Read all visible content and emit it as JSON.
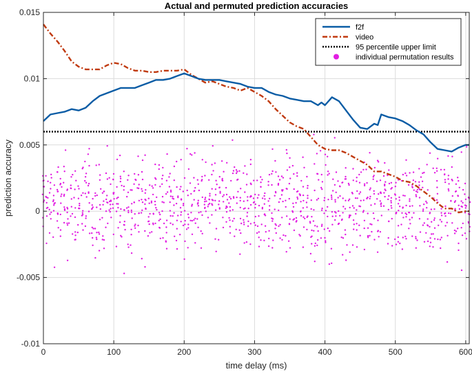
{
  "chart_data": {
    "type": "line",
    "title": "Actual and permuted prediction accuracies",
    "xlabel": "time delay (ms)",
    "ylabel": "prediction accuracy",
    "xlim": [
      0,
      605
    ],
    "ylim": [
      -0.01,
      0.015
    ],
    "xticks": [
      0,
      100,
      200,
      300,
      400,
      500,
      600
    ],
    "xtick_labels": [
      "0",
      "100",
      "200",
      "300",
      "400",
      "500",
      "600"
    ],
    "yticks": [
      -0.01,
      -0.005,
      0,
      0.005,
      0.01,
      0.015
    ],
    "ytick_labels": [
      "-0.01",
      "-0.005",
      "0",
      "0.005",
      "0.01",
      "0.015"
    ],
    "grid": true,
    "legend_position": "top-right",
    "colors": {
      "f2f": "#0a5ca5",
      "video": "#c0390e",
      "threshold": "#000000",
      "permutation": "#e21ee2",
      "grid": "#dcdcdc",
      "axes": "#262626"
    },
    "series": [
      {
        "name": "f2f",
        "style": "solid",
        "x": [
          0,
          10,
          20,
          30,
          40,
          50,
          60,
          70,
          80,
          90,
          100,
          110,
          120,
          130,
          140,
          150,
          160,
          170,
          180,
          190,
          200,
          210,
          220,
          230,
          240,
          250,
          260,
          270,
          280,
          290,
          300,
          310,
          320,
          330,
          340,
          350,
          360,
          370,
          380,
          390,
          395,
          400,
          410,
          420,
          430,
          440,
          450,
          460,
          470,
          475,
          480,
          490,
          500,
          510,
          520,
          530,
          540,
          550,
          560,
          570,
          580,
          590,
          600,
          605
        ],
        "y": [
          0.0068,
          0.0073,
          0.0074,
          0.0075,
          0.0077,
          0.0076,
          0.0078,
          0.0083,
          0.0087,
          0.0089,
          0.0091,
          0.0093,
          0.0093,
          0.0093,
          0.0095,
          0.0097,
          0.0099,
          0.0099,
          0.01,
          0.0102,
          0.0104,
          0.0102,
          0.01,
          0.0099,
          0.0099,
          0.0099,
          0.0098,
          0.0097,
          0.0096,
          0.0094,
          0.0093,
          0.0093,
          0.009,
          0.0088,
          0.0087,
          0.0085,
          0.0084,
          0.0083,
          0.0083,
          0.008,
          0.0082,
          0.008,
          0.0086,
          0.0083,
          0.0076,
          0.0069,
          0.0063,
          0.0062,
          0.0066,
          0.0065,
          0.0073,
          0.0071,
          0.007,
          0.0068,
          0.0065,
          0.0061,
          0.0058,
          0.0052,
          0.0047,
          0.0046,
          0.0045,
          0.0048,
          0.005,
          0.005
        ]
      },
      {
        "name": "video",
        "style": "dash-dot",
        "x": [
          0,
          10,
          20,
          30,
          40,
          50,
          60,
          70,
          80,
          90,
          100,
          110,
          120,
          130,
          140,
          150,
          160,
          170,
          180,
          190,
          200,
          210,
          220,
          230,
          240,
          250,
          260,
          270,
          280,
          290,
          300,
          310,
          320,
          330,
          340,
          350,
          360,
          370,
          380,
          390,
          400,
          410,
          420,
          430,
          440,
          450,
          460,
          470,
          480,
          490,
          500,
          510,
          520,
          530,
          540,
          550,
          560,
          570,
          580,
          590,
          600,
          605
        ],
        "y": [
          0.0141,
          0.0134,
          0.0128,
          0.0121,
          0.0113,
          0.0109,
          0.0107,
          0.0107,
          0.0107,
          0.011,
          0.0112,
          0.0111,
          0.0108,
          0.0106,
          0.0106,
          0.0105,
          0.0105,
          0.0106,
          0.0106,
          0.0106,
          0.0107,
          0.0103,
          0.01,
          0.0097,
          0.0098,
          0.0096,
          0.0094,
          0.0093,
          0.0091,
          0.0093,
          0.009,
          0.0087,
          0.0083,
          0.0077,
          0.0072,
          0.0067,
          0.0064,
          0.0062,
          0.0056,
          0.005,
          0.0047,
          0.0046,
          0.0046,
          0.0044,
          0.0041,
          0.0038,
          0.0035,
          0.003,
          0.003,
          0.0028,
          0.0026,
          0.0023,
          0.0022,
          0.0019,
          0.0015,
          0.0011,
          0.0006,
          0.0002,
          0.0002,
          -0.0001,
          0,
          0
        ]
      },
      {
        "name": "95 percentile upper limit",
        "style": "dotted",
        "x": [
          0,
          605
        ],
        "y": [
          0.006,
          0.006
        ]
      }
    ],
    "scatter": {
      "name": "individual permutation results",
      "x_range": [
        0,
        605
      ],
      "x_step": 5,
      "values_per_x": 10,
      "approx_range": [
        -0.0088,
        0.0092
      ],
      "approx_center": 0.0005
    },
    "legend": [
      "f2f",
      "video",
      "95 percentile upper limit",
      "individual permutation results"
    ]
  }
}
